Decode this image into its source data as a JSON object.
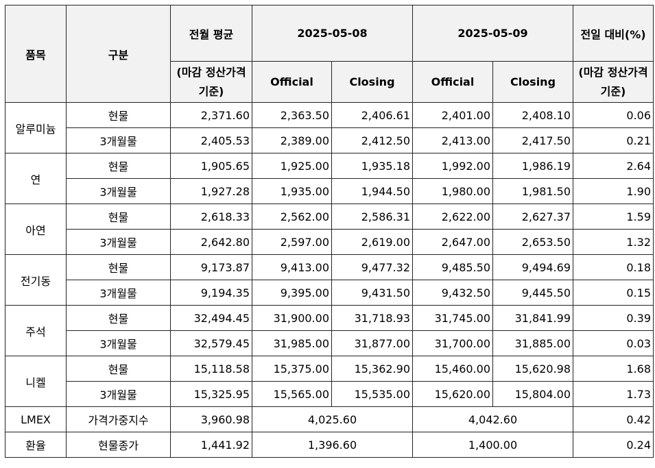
{
  "header": {
    "item": "품목",
    "category": "구분",
    "prev_avg": "전월 평균",
    "prev_avg_note": "(마감 정산가격 기준)",
    "dates": [
      "2025-05-08",
      "2025-05-09"
    ],
    "official": "Official",
    "closing": "Closing",
    "change": "전일 대비(%)",
    "change_note": "(마감 정산가격 기준)"
  },
  "groups": [
    {
      "item": "알루미늄",
      "rows": [
        {
          "category": "현물",
          "values": [
            "2,371.60",
            "2,363.50",
            "2,406.61",
            "2,401.00",
            "2,408.10",
            "0.06"
          ]
        },
        {
          "category": "3개월물",
          "values": [
            "2,405.53",
            "2,389.00",
            "2,412.50",
            "2,413.00",
            "2,417.50",
            "0.21"
          ]
        }
      ]
    },
    {
      "item": "연",
      "rows": [
        {
          "category": "현물",
          "values": [
            "1,905.65",
            "1,925.00",
            "1,935.18",
            "1,992.00",
            "1,986.19",
            "2.64"
          ]
        },
        {
          "category": "3개월물",
          "values": [
            "1,927.28",
            "1,935.00",
            "1,944.50",
            "1,980.00",
            "1,981.50",
            "1.90"
          ]
        }
      ]
    },
    {
      "item": "아연",
      "rows": [
        {
          "category": "현물",
          "values": [
            "2,618.33",
            "2,562.00",
            "2,586.31",
            "2,622.00",
            "2,627.37",
            "1.59"
          ]
        },
        {
          "category": "3개월물",
          "values": [
            "2,642.80",
            "2,597.00",
            "2,619.00",
            "2,647.00",
            "2,653.50",
            "1.32"
          ]
        }
      ]
    },
    {
      "item": "전기동",
      "rows": [
        {
          "category": "현물",
          "values": [
            "9,173.87",
            "9,413.00",
            "9,477.32",
            "9,485.50",
            "9,494.69",
            "0.18"
          ]
        },
        {
          "category": "3개월물",
          "values": [
            "9,194.35",
            "9,395.00",
            "9,431.50",
            "9,432.50",
            "9,445.50",
            "0.15"
          ]
        }
      ]
    },
    {
      "item": "주석",
      "rows": [
        {
          "category": "현물",
          "values": [
            "32,494.45",
            "31,900.00",
            "31,718.93",
            "31,745.00",
            "31,841.99",
            "0.39"
          ]
        },
        {
          "category": "3개월물",
          "values": [
            "32,579.45",
            "31,985.00",
            "31,877.00",
            "31,700.00",
            "31,885.00",
            "0.03"
          ]
        }
      ]
    },
    {
      "item": "니켈",
      "rows": [
        {
          "category": "현물",
          "values": [
            "15,118.58",
            "15,375.00",
            "15,362.90",
            "15,460.00",
            "15,620.98",
            "1.68"
          ]
        },
        {
          "category": "3개월물",
          "values": [
            "15,325.95",
            "15,565.00",
            "15,535.00",
            "15,620.00",
            "15,804.00",
            "1.73"
          ]
        }
      ]
    },
    {
      "item": "LMEX",
      "rows": [
        {
          "category": "가격가중지수",
          "values": [
            "3,960.98",
            "4,025.60",
            "4,042.60",
            "0.42"
          ]
        }
      ]
    },
    {
      "item": "환율",
      "rows": [
        {
          "category": "현물종가",
          "values": [
            "1,441.92",
            "1,396.60",
            "1,400.00",
            "0.24"
          ]
        }
      ]
    }
  ]
}
